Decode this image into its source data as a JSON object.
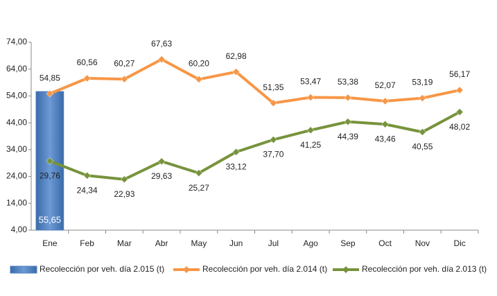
{
  "chart_data": {
    "type": "combo",
    "categories": [
      "Ene",
      "Feb",
      "Mar",
      "Abr",
      "May",
      "Jun",
      "Jul",
      "Ago",
      "Sep",
      "Oct",
      "Nov",
      "Dic"
    ],
    "series": [
      {
        "name": "Recolección por veh. día 2.015 (t)",
        "type": "bar",
        "color": "#4f81bd",
        "values": [
          55.65,
          null,
          null,
          null,
          null,
          null,
          null,
          null,
          null,
          null,
          null,
          null
        ],
        "value_labels": [
          "55,65",
          null,
          null,
          null,
          null,
          null,
          null,
          null,
          null,
          null,
          null,
          null
        ]
      },
      {
        "name": "Recolección por veh. día 2.014 (t)",
        "type": "line",
        "color": "#f79646",
        "values": [
          54.85,
          60.56,
          60.27,
          67.63,
          60.2,
          62.98,
          51.35,
          53.47,
          53.38,
          52.07,
          53.19,
          56.17
        ],
        "value_labels": [
          "54,85",
          "60,56",
          "60,27",
          "67,63",
          "60,20",
          "62,98",
          "51,35",
          "53,47",
          "53,38",
          "52,07",
          "53,19",
          "56,17"
        ]
      },
      {
        "name": "Recolección por veh. día 2.013 (t)",
        "type": "line",
        "color": "#77933c",
        "values": [
          29.76,
          24.34,
          22.93,
          29.63,
          25.27,
          33.12,
          37.7,
          41.25,
          44.39,
          43.46,
          40.55,
          48.02
        ],
        "value_labels": [
          "29,76",
          "24,34",
          "22,93",
          "29,63",
          "25,27",
          "33,12",
          "37,70",
          "41,25",
          "44,39",
          "43,46",
          "40,55",
          "48,02"
        ]
      }
    ],
    "ylim": [
      4,
      74
    ],
    "yticks": [
      {
        "value": 4,
        "label": "4,00"
      },
      {
        "value": 14,
        "label": "14,00"
      },
      {
        "value": 24,
        "label": "24,00"
      },
      {
        "value": 34,
        "label": "34,00"
      },
      {
        "value": 44,
        "label": "44,00"
      },
      {
        "value": 54,
        "label": "54,00"
      },
      {
        "value": 64,
        "label": "64,00"
      },
      {
        "value": 74,
        "label": "74,00"
      }
    ],
    "grid": false,
    "legend": "bottom"
  }
}
